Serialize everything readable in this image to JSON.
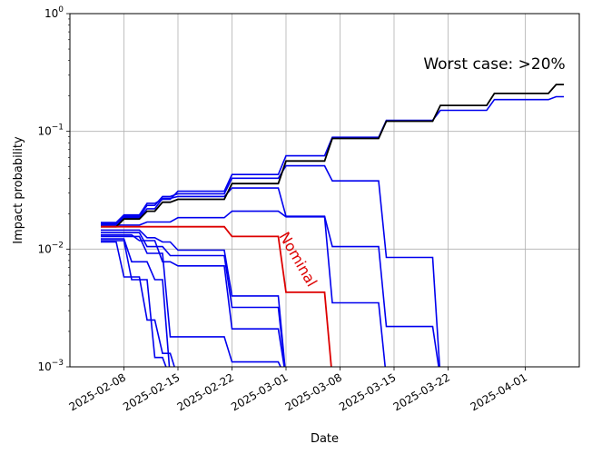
{
  "chart_data": {
    "type": "line",
    "xlabel": "Date",
    "ylabel": "Impact probability",
    "yscale": "log",
    "ylim": [
      0.001,
      1
    ],
    "xlim": [
      "2025-02-01",
      "2025-04-08"
    ],
    "grid": true,
    "xticks": [
      "2025-02-08",
      "2025-02-15",
      "2025-02-22",
      "2025-03-01",
      "2025-03-08",
      "2025-03-15",
      "2025-03-22",
      "2025-04-01"
    ],
    "yticks": [
      {
        "value": 0.001,
        "base": "10",
        "exp": "−3"
      },
      {
        "value": 0.01,
        "base": "10",
        "exp": "−2"
      },
      {
        "value": 0.1,
        "base": "10",
        "exp": "−1"
      },
      {
        "value": 1,
        "base": "10",
        "exp": "0"
      }
    ],
    "annotations": [
      {
        "text": "Worst case: >20%",
        "x": "2025-03-28",
        "y": 0.34,
        "color": "#000000",
        "size": 17,
        "rotate": 0
      },
      {
        "text": "Nominal",
        "x": "2025-03-02",
        "y": 0.0078,
        "color": "#dd0000",
        "size": 16,
        "rotate": 60
      }
    ],
    "series": [
      {
        "color": "#0000ee",
        "width": 1.6,
        "points": [
          [
            "2025-02-05",
            0.0168
          ],
          [
            "2025-02-07",
            0.0168
          ],
          [
            "2025-02-08",
            0.0195
          ],
          [
            "2025-02-10",
            0.0195
          ],
          [
            "2025-02-11",
            0.0245
          ],
          [
            "2025-02-12",
            0.0245
          ],
          [
            "2025-02-13",
            0.0265
          ],
          [
            "2025-02-14",
            0.0265
          ],
          [
            "2025-02-15",
            0.031
          ],
          [
            "2025-02-21",
            0.031
          ],
          [
            "2025-02-22",
            0.043
          ],
          [
            "2025-02-28",
            0.043
          ],
          [
            "2025-03-01",
            0.062
          ],
          [
            "2025-03-06",
            0.062
          ],
          [
            "2025-03-07",
            0.089
          ],
          [
            "2025-03-13",
            0.089
          ],
          [
            "2025-03-14",
            0.124
          ],
          [
            "2025-03-20",
            0.124
          ],
          [
            "2025-03-21",
            0.151
          ],
          [
            "2025-03-27",
            0.151
          ],
          [
            "2025-03-28",
            0.186
          ],
          [
            "2025-04-04",
            0.186
          ],
          [
            "2025-04-05",
            0.197
          ],
          [
            "2025-04-06",
            0.197
          ]
        ]
      },
      {
        "color": "#0000ee",
        "width": 1.6,
        "points": [
          [
            "2025-02-05",
            0.0165
          ],
          [
            "2025-02-07",
            0.0165
          ],
          [
            "2025-02-08",
            0.019
          ],
          [
            "2025-02-10",
            0.019
          ],
          [
            "2025-02-11",
            0.0235
          ],
          [
            "2025-02-12",
            0.0235
          ],
          [
            "2025-02-13",
            0.028
          ],
          [
            "2025-02-14",
            0.028
          ],
          [
            "2025-02-15",
            0.0295
          ],
          [
            "2025-02-21",
            0.0295
          ],
          [
            "2025-02-22",
            0.04
          ],
          [
            "2025-02-28",
            0.04
          ],
          [
            "2025-03-01",
            0.051
          ],
          [
            "2025-03-06",
            0.051
          ],
          [
            "2025-03-07",
            0.038
          ],
          [
            "2025-03-13",
            0.038
          ],
          [
            "2025-03-14",
            0.0085
          ],
          [
            "2025-03-20",
            0.0085
          ],
          [
            "2025-03-21",
            0.0008
          ]
        ]
      },
      {
        "color": "#0000ee",
        "width": 1.6,
        "points": [
          [
            "2025-02-05",
            0.0162
          ],
          [
            "2025-02-07",
            0.0162
          ],
          [
            "2025-02-08",
            0.0185
          ],
          [
            "2025-02-10",
            0.0185
          ],
          [
            "2025-02-11",
            0.022
          ],
          [
            "2025-02-12",
            0.022
          ],
          [
            "2025-02-13",
            0.027
          ],
          [
            "2025-02-14",
            0.027
          ],
          [
            "2025-02-15",
            0.028
          ],
          [
            "2025-02-21",
            0.028
          ],
          [
            "2025-02-22",
            0.033
          ],
          [
            "2025-02-28",
            0.033
          ],
          [
            "2025-03-01",
            0.019
          ],
          [
            "2025-03-06",
            0.019
          ],
          [
            "2025-03-07",
            0.0105
          ],
          [
            "2025-03-13",
            0.0105
          ],
          [
            "2025-03-14",
            0.0022
          ],
          [
            "2025-03-20",
            0.0022
          ],
          [
            "2025-03-21",
            0.0008
          ]
        ]
      },
      {
        "color": "#0000ee",
        "width": 1.6,
        "points": [
          [
            "2025-02-05",
            0.016
          ],
          [
            "2025-02-10",
            0.016
          ],
          [
            "2025-02-11",
            0.017
          ],
          [
            "2025-02-14",
            0.017
          ],
          [
            "2025-02-15",
            0.0185
          ],
          [
            "2025-02-21",
            0.0185
          ],
          [
            "2025-02-22",
            0.021
          ],
          [
            "2025-02-28",
            0.021
          ],
          [
            "2025-03-01",
            0.0188
          ],
          [
            "2025-03-06",
            0.0188
          ],
          [
            "2025-03-07",
            0.0035
          ],
          [
            "2025-03-13",
            0.0035
          ],
          [
            "2025-03-14",
            0.0008
          ]
        ]
      },
      {
        "color": "#0000ee",
        "width": 1.6,
        "points": [
          [
            "2025-02-05",
            0.0145
          ],
          [
            "2025-02-10",
            0.0145
          ],
          [
            "2025-02-11",
            0.0125
          ],
          [
            "2025-02-12",
            0.0125
          ],
          [
            "2025-02-13",
            0.0115
          ],
          [
            "2025-02-14",
            0.0115
          ],
          [
            "2025-02-15",
            0.0098
          ],
          [
            "2025-02-21",
            0.0098
          ],
          [
            "2025-02-22",
            0.004
          ],
          [
            "2025-02-28",
            0.004
          ],
          [
            "2025-03-01",
            0.0008
          ]
        ]
      },
      {
        "color": "#0000ee",
        "width": 1.6,
        "points": [
          [
            "2025-02-05",
            0.0138
          ],
          [
            "2025-02-10",
            0.0138
          ],
          [
            "2025-02-11",
            0.0105
          ],
          [
            "2025-02-13",
            0.0105
          ],
          [
            "2025-02-14",
            0.0088
          ],
          [
            "2025-02-21",
            0.0088
          ],
          [
            "2025-02-22",
            0.0032
          ],
          [
            "2025-02-28",
            0.0032
          ],
          [
            "2025-03-01",
            0.0008
          ]
        ]
      },
      {
        "color": "#0000ee",
        "width": 1.6,
        "points": [
          [
            "2025-02-05",
            0.0132
          ],
          [
            "2025-02-09",
            0.0132
          ],
          [
            "2025-02-10",
            0.0118
          ],
          [
            "2025-02-12",
            0.0118
          ],
          [
            "2025-02-13",
            0.0078
          ],
          [
            "2025-02-14",
            0.0078
          ],
          [
            "2025-02-15",
            0.0072
          ],
          [
            "2025-02-21",
            0.0072
          ],
          [
            "2025-02-22",
            0.0021
          ],
          [
            "2025-02-28",
            0.0021
          ],
          [
            "2025-03-01",
            0.0008
          ]
        ]
      },
      {
        "color": "#0000ee",
        "width": 1.6,
        "points": [
          [
            "2025-02-05",
            0.0128
          ],
          [
            "2025-02-10",
            0.0128
          ],
          [
            "2025-02-11",
            0.0092
          ],
          [
            "2025-02-13",
            0.0092
          ],
          [
            "2025-02-14",
            0.0018
          ],
          [
            "2025-02-21",
            0.0018
          ],
          [
            "2025-02-22",
            0.0011
          ],
          [
            "2025-02-28",
            0.0011
          ],
          [
            "2025-03-01",
            0.0008
          ]
        ]
      },
      {
        "color": "#0000ee",
        "width": 1.6,
        "points": [
          [
            "2025-02-05",
            0.0122
          ],
          [
            "2025-02-08",
            0.0122
          ],
          [
            "2025-02-09",
            0.0078
          ],
          [
            "2025-02-11",
            0.0078
          ],
          [
            "2025-02-12",
            0.0055
          ],
          [
            "2025-02-13",
            0.0055
          ],
          [
            "2025-02-14",
            0.0008
          ]
        ]
      },
      {
        "color": "#0000ee",
        "width": 1.6,
        "points": [
          [
            "2025-02-05",
            0.0115
          ],
          [
            "2025-02-07",
            0.0115
          ],
          [
            "2025-02-08",
            0.0058
          ],
          [
            "2025-02-10",
            0.0058
          ],
          [
            "2025-02-11",
            0.0025
          ],
          [
            "2025-02-12",
            0.0025
          ],
          [
            "2025-02-13",
            0.0013
          ],
          [
            "2025-02-14",
            0.0013
          ],
          [
            "2025-02-15",
            0.0008
          ]
        ]
      },
      {
        "color": "#0000ee",
        "width": 1.6,
        "points": [
          [
            "2025-02-05",
            0.0118
          ],
          [
            "2025-02-08",
            0.0118
          ],
          [
            "2025-02-09",
            0.0055
          ],
          [
            "2025-02-11",
            0.0055
          ],
          [
            "2025-02-12",
            0.0012
          ],
          [
            "2025-02-13",
            0.0012
          ],
          [
            "2025-02-14",
            0.0008
          ]
        ]
      },
      {
        "color": "#000000",
        "width": 1.8,
        "points": [
          [
            "2025-02-05",
            0.0155
          ],
          [
            "2025-02-07",
            0.0155
          ],
          [
            "2025-02-08",
            0.018
          ],
          [
            "2025-02-10",
            0.018
          ],
          [
            "2025-02-11",
            0.021
          ],
          [
            "2025-02-12",
            0.021
          ],
          [
            "2025-02-13",
            0.025
          ],
          [
            "2025-02-14",
            0.025
          ],
          [
            "2025-02-15",
            0.0265
          ],
          [
            "2025-02-21",
            0.0265
          ],
          [
            "2025-02-22",
            0.036
          ],
          [
            "2025-02-28",
            0.036
          ],
          [
            "2025-03-01",
            0.056
          ],
          [
            "2025-03-06",
            0.056
          ],
          [
            "2025-03-07",
            0.087
          ],
          [
            "2025-03-13",
            0.087
          ],
          [
            "2025-03-14",
            0.122
          ],
          [
            "2025-03-20",
            0.122
          ],
          [
            "2025-03-21",
            0.166
          ],
          [
            "2025-03-27",
            0.166
          ],
          [
            "2025-03-28",
            0.21
          ],
          [
            "2025-04-04",
            0.21
          ],
          [
            "2025-04-05",
            0.25
          ],
          [
            "2025-04-06",
            0.25
          ]
        ]
      },
      {
        "color": "#dd0000",
        "width": 1.8,
        "points": [
          [
            "2025-02-05",
            0.0155
          ],
          [
            "2025-02-21",
            0.0155
          ],
          [
            "2025-02-22",
            0.0128
          ],
          [
            "2025-02-28",
            0.0128
          ],
          [
            "2025-03-01",
            0.0043
          ],
          [
            "2025-03-06",
            0.0043
          ],
          [
            "2025-03-07",
            0.0008
          ]
        ]
      }
    ]
  }
}
